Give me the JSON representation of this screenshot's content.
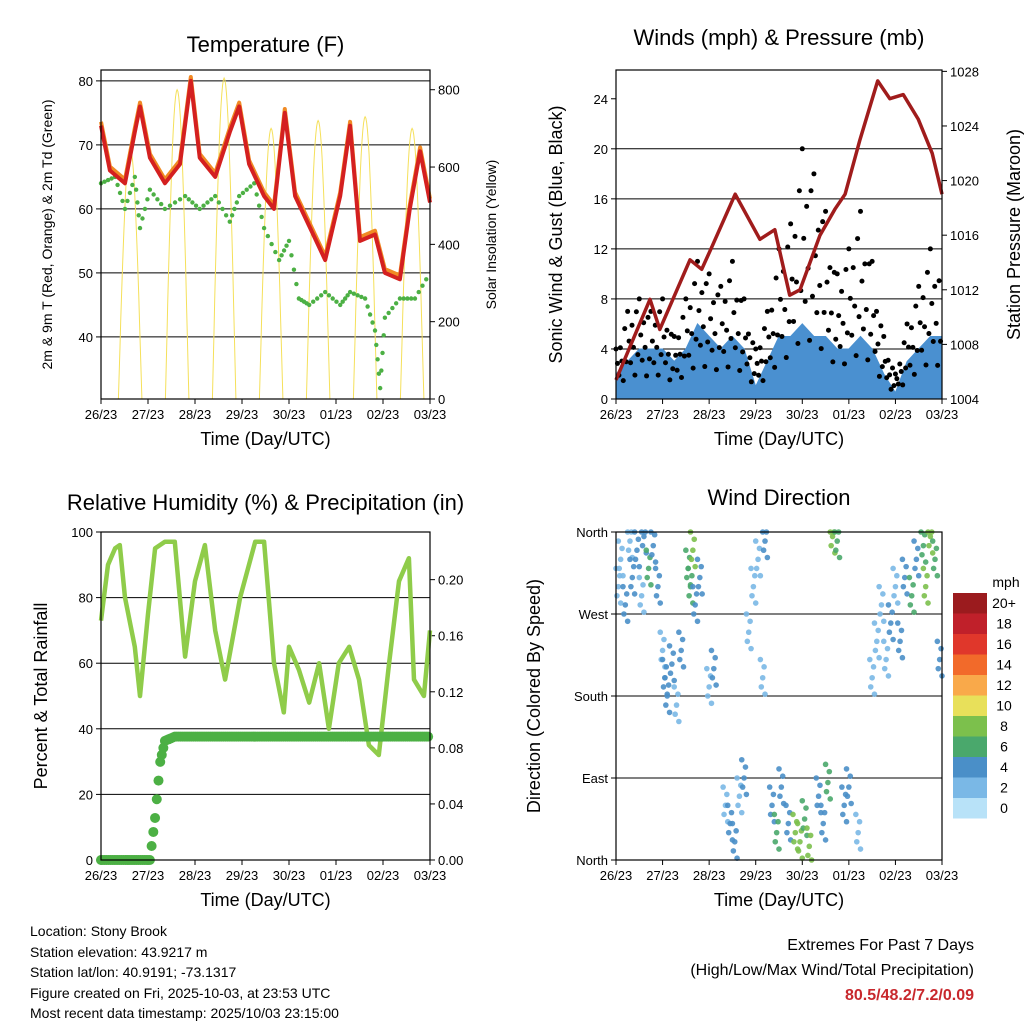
{
  "info": {
    "location": "Location: Stony Brook",
    "elevation": "Station elevation: 43.9217 m",
    "latlon": "Station lat/lon: 40.9191; -73.1317",
    "created": "Figure created on Fri, 2025-10-03, at 23:53 UTC",
    "latest": "Most recent data timestamp: 2025/10/03 23:15:00"
  },
  "extremes": {
    "title": "Extremes For Past 7 Days",
    "subtitle": "(High/Low/Max Wind/Total Precipitation)",
    "values": "80.5/48.2/7.2/0.09"
  },
  "colors": {
    "temp2m": "#d42020",
    "temp9m": "#f08a24",
    "dewpoint": "#4cb044",
    "solar": "#f5e05a",
    "gust": "#000000",
    "wind": "#4a90d0",
    "pressure": "#a01c1c",
    "rh": "#8fcc4a",
    "precip": "#4cb044"
  },
  "chart_data": [
    {
      "type": "line",
      "title": "Temperature (F)",
      "xlabel": "Time (Day/UTC)",
      "ylabel": "2m & 9m T (Red, Orange) & 2m Td (Green)",
      "ylabel_right": "Solar Insolation (Yellow)",
      "x_ticks": [
        "26/23",
        "27/23",
        "28/23",
        "29/23",
        "30/23",
        "01/23",
        "02/23",
        "03/23"
      ],
      "xlim": [
        0,
        7
      ],
      "ylim": [
        30.3,
        81.7
      ],
      "y_ticks": [
        40,
        50,
        60,
        70,
        80
      ],
      "ylim_right": [
        0,
        851
      ],
      "y_ticks_right": [
        0,
        200,
        400,
        600,
        800
      ],
      "series": [
        {
          "name": "2m T",
          "color_key": "temp2m",
          "x": [
            0,
            0.19,
            0.51,
            0.72,
            0.83,
            1.04,
            1.36,
            1.68,
            1.91,
            2.1,
            2.43,
            2.74,
            2.94,
            3.15,
            3.47,
            3.68,
            3.91,
            4.13,
            4.45,
            4.77,
            5.09,
            5.3,
            5.51,
            5.83,
            6.04,
            6.36,
            6.57,
            6.79,
            7.0
          ],
          "y": [
            73,
            66,
            64,
            72,
            76,
            68,
            64,
            67,
            80,
            68,
            65,
            72,
            76,
            67,
            62,
            60,
            75,
            62,
            57,
            52,
            62,
            73,
            55,
            56,
            50,
            49,
            60,
            69,
            61
          ]
        },
        {
          "name": "2m Td",
          "color_key": "dewpoint",
          "x": [
            0,
            0.3,
            0.51,
            0.72,
            0.83,
            1.04,
            1.36,
            1.79,
            2.1,
            2.43,
            2.74,
            2.94,
            3.26,
            3.47,
            3.79,
            4.0,
            4.21,
            4.43,
            4.77,
            5.09,
            5.3,
            5.62,
            5.83,
            5.94,
            6.04,
            6.36,
            6.68,
            7.0
          ],
          "y": [
            64,
            65,
            60,
            65,
            57,
            63,
            60,
            62,
            60,
            62,
            58,
            62,
            64,
            57,
            52,
            55,
            46,
            45,
            47,
            45,
            47,
            46,
            41,
            32,
            43,
            46,
            46,
            50
          ]
        }
      ],
      "solar_peaks": [
        {
          "day": 0.62,
          "value": 650
        },
        {
          "day": 1.62,
          "value": 800
        },
        {
          "day": 2.62,
          "value": 830
        },
        {
          "day": 3.62,
          "value": 700
        },
        {
          "day": 4.62,
          "value": 720
        },
        {
          "day": 5.62,
          "value": 730
        },
        {
          "day": 6.62,
          "value": 700
        }
      ]
    },
    {
      "type": "scatter",
      "title": "Winds (mph) & Pressure (mb)",
      "xlabel": "Time (Day/UTC)",
      "ylabel": "Sonic Wind & Gust (Blue, Black)",
      "ylabel_right": "Station Pressure (Maroon)",
      "x_ticks": [
        "26/23",
        "27/23",
        "28/23",
        "29/23",
        "30/23",
        "01/23",
        "02/23",
        "03/23"
      ],
      "xlim": [
        0,
        7
      ],
      "ylim": [
        0,
        26.3
      ],
      "y_ticks": [
        0,
        4,
        8,
        12,
        16,
        20,
        24
      ],
      "ylim_right": [
        1004,
        1028.1
      ],
      "y_ticks_right": [
        1004,
        1008,
        1012,
        1016,
        1020,
        1024,
        1028
      ],
      "gust": {
        "x": [
          0,
          0.25,
          0.5,
          0.75,
          1,
          1.25,
          1.5,
          1.75,
          2,
          2.25,
          2.5,
          2.75,
          3,
          3.25,
          3.5,
          3.75,
          4,
          4.25,
          4.5,
          4.75,
          5,
          5.25,
          5.5,
          5.75,
          6,
          6.25,
          6.5,
          6.75,
          7
        ],
        "y": [
          4,
          7,
          8,
          7,
          8,
          5,
          8,
          11,
          10,
          9,
          11,
          8,
          4,
          7,
          12,
          14,
          20,
          18,
          15,
          10,
          12,
          15,
          11,
          5,
          2,
          6,
          9,
          12,
          10
        ]
      },
      "wind": {
        "x": [
          0,
          0.25,
          0.5,
          0.75,
          1,
          1.25,
          1.5,
          1.75,
          2,
          2.25,
          2.5,
          2.75,
          3,
          3.25,
          3.5,
          3.75,
          4,
          4.25,
          4.5,
          4.75,
          5,
          5.25,
          5.5,
          5.75,
          6,
          6.25,
          6.5,
          6.75,
          7
        ],
        "y": [
          2,
          3,
          4,
          4,
          4,
          3,
          4,
          6,
          5,
          4,
          5,
          4,
          1,
          3,
          5,
          5,
          6,
          5,
          5,
          4,
          4,
          5,
          4,
          2,
          0.5,
          3,
          4,
          5,
          5
        ]
      },
      "pressure": {
        "x": [
          0,
          0.73,
          0.94,
          1.59,
          1.84,
          2.04,
          2.56,
          3.09,
          3.41,
          3.73,
          3.95,
          4.38,
          4.7,
          4.92,
          5.24,
          5.62,
          5.88,
          6.17,
          6.49,
          6.79,
          7.0
        ],
        "y": [
          1005.4,
          1011.3,
          1009.1,
          1014.2,
          1013.5,
          1015,
          1019,
          1015.7,
          1016.4,
          1011.6,
          1012,
          1016,
          1017.9,
          1019,
          1023,
          1027.3,
          1026,
          1026.3,
          1024.5,
          1022,
          1019
        ]
      }
    },
    {
      "type": "line",
      "title": "Relative Humidity (%) & Precipitation (in)",
      "xlabel": "Time (Day/UTC)",
      "ylabel": "Percent & Total Rainfall",
      "x_ticks": [
        "26/23",
        "27/23",
        "28/23",
        "29/23",
        "30/23",
        "01/23",
        "02/23",
        "03/23"
      ],
      "xlim": [
        0,
        7
      ],
      "ylim": [
        0,
        100
      ],
      "y_ticks": [
        0,
        20,
        40,
        60,
        80,
        100
      ],
      "ylim_right": [
        0,
        0.234
      ],
      "y_ticks_right": [
        "0.00",
        "0.04",
        "0.08",
        "0.12",
        "0.16",
        "0.20"
      ],
      "rh": {
        "x": [
          0,
          0.15,
          0.3,
          0.4,
          0.51,
          0.72,
          0.83,
          1.0,
          1.15,
          1.36,
          1.57,
          1.79,
          2.0,
          2.21,
          2.43,
          2.64,
          2.96,
          3.28,
          3.47,
          3.68,
          3.89,
          4.0,
          4.21,
          4.43,
          4.64,
          4.85,
          5.06,
          5.28,
          5.49,
          5.7,
          5.91,
          6.13,
          6.34,
          6.55,
          6.66,
          6.87,
          7.0
        ],
        "y": [
          73,
          90,
          95,
          96,
          80,
          65,
          50,
          75,
          95,
          97,
          97,
          62,
          85,
          96,
          70,
          55,
          80,
          97,
          97,
          60,
          45,
          65,
          58,
          48,
          60,
          40,
          60,
          65,
          55,
          35,
          32,
          60,
          85,
          92,
          55,
          50,
          70
        ]
      },
      "precip": {
        "x": [
          0,
          1.04,
          1.15,
          1.26,
          1.36,
          1.57,
          7.0
        ],
        "y": [
          0,
          0,
          0.03,
          0.07,
          0.085,
          0.088,
          0.088
        ]
      }
    },
    {
      "type": "scatter",
      "title": "Wind Direction",
      "xlabel": "Time (Day/UTC)",
      "ylabel": "Direction (Colored By Speed)",
      "x_ticks": [
        "26/23",
        "27/23",
        "28/23",
        "29/23",
        "30/23",
        "01/23",
        "02/23",
        "03/23"
      ],
      "xlim": [
        0,
        7
      ],
      "ylim": [
        0,
        360
      ],
      "y_ticks": [
        "North",
        "East",
        "South",
        "West",
        "North"
      ],
      "legend": {
        "title": "mph",
        "labels": [
          "20+",
          "18",
          "16",
          "14",
          "12",
          "10",
          "8",
          "6",
          "4",
          "2",
          "0"
        ],
        "colors": [
          "#9b1b1e",
          "#c0202a",
          "#e0372b",
          "#f26a2a",
          "#f9a94a",
          "#e8e05a",
          "#7cc04c",
          "#4aa86c",
          "#4a8fc8",
          "#7ab8e6",
          "#b8e2f8"
        ]
      },
      "points": [
        [
          0.05,
          300,
          2
        ],
        [
          0.1,
          330,
          1
        ],
        [
          0.2,
          280,
          3
        ],
        [
          0.3,
          350,
          2
        ],
        [
          0.35,
          310,
          4
        ],
        [
          0.45,
          340,
          3
        ],
        [
          0.55,
          290,
          2
        ],
        [
          0.6,
          355,
          4
        ],
        [
          0.7,
          320,
          5
        ],
        [
          0.8,
          345,
          4
        ],
        [
          0.9,
          300,
          3
        ],
        [
          1.0,
          230,
          2
        ],
        [
          1.05,
          200,
          3
        ],
        [
          1.1,
          180,
          4
        ],
        [
          1.2,
          215,
          3
        ],
        [
          1.3,
          170,
          2
        ],
        [
          1.4,
          230,
          3
        ],
        [
          1.55,
          320,
          6
        ],
        [
          1.6,
          300,
          5
        ],
        [
          1.65,
          340,
          7
        ],
        [
          1.7,
          280,
          4
        ],
        [
          1.8,
          310,
          3
        ],
        [
          2.0,
          190,
          2
        ],
        [
          2.1,
          210,
          3
        ],
        [
          2.35,
          60,
          2
        ],
        [
          2.45,
          40,
          3
        ],
        [
          2.55,
          20,
          4
        ],
        [
          2.65,
          70,
          2
        ],
        [
          2.75,
          90,
          3
        ],
        [
          2.85,
          250,
          1
        ],
        [
          2.95,
          300,
          1
        ],
        [
          3.05,
          330,
          1
        ],
        [
          3.15,
          200,
          2
        ],
        [
          3.2,
          350,
          3
        ],
        [
          3.35,
          60,
          4
        ],
        [
          3.45,
          30,
          5
        ],
        [
          3.55,
          80,
          3
        ],
        [
          3.7,
          40,
          4
        ],
        [
          3.85,
          30,
          7
        ],
        [
          3.95,
          20,
          8
        ],
        [
          4.05,
          45,
          6
        ],
        [
          4.15,
          15,
          7
        ],
        [
          4.35,
          70,
          4
        ],
        [
          4.45,
          40,
          3
        ],
        [
          4.55,
          85,
          5
        ],
        [
          4.65,
          355,
          7
        ],
        [
          4.75,
          350,
          6
        ],
        [
          4.9,
          60,
          4
        ],
        [
          5.0,
          80,
          3
        ],
        [
          5.2,
          30,
          2
        ],
        [
          5.5,
          200,
          1
        ],
        [
          5.6,
          240,
          2
        ],
        [
          5.7,
          280,
          1
        ],
        [
          5.8,
          220,
          2
        ],
        [
          5.9,
          260,
          3
        ],
        [
          6.0,
          300,
          2
        ],
        [
          6.1,
          240,
          4
        ],
        [
          6.2,
          310,
          3
        ],
        [
          6.35,
          290,
          5
        ],
        [
          6.45,
          330,
          4
        ],
        [
          6.6,
          345,
          6
        ],
        [
          6.65,
          300,
          7
        ],
        [
          6.75,
          355,
          8
        ],
        [
          6.85,
          330,
          5
        ],
        [
          6.95,
          220,
          3
        ]
      ]
    }
  ]
}
